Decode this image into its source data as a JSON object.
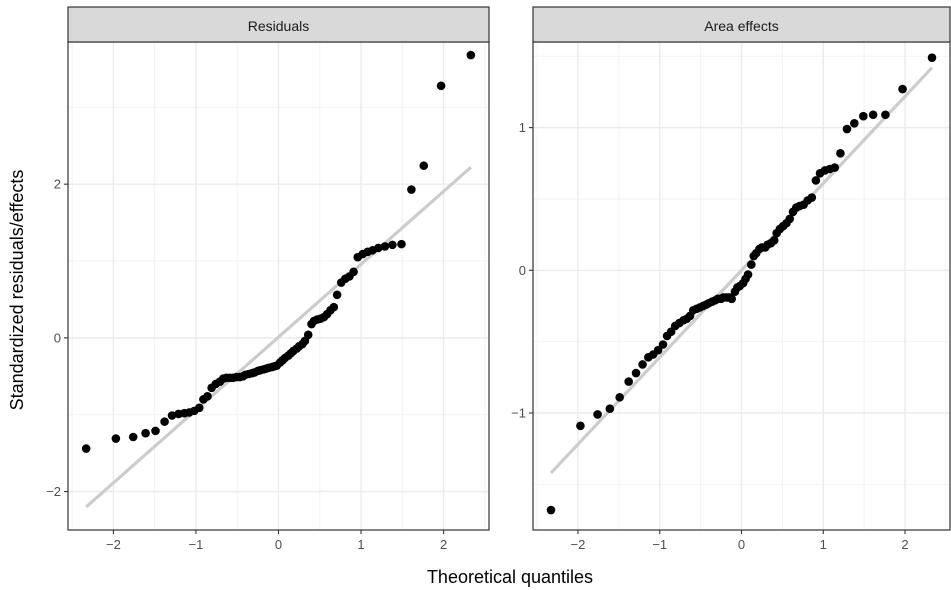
{
  "chart_data": {
    "type": "scatter",
    "xlabel": "Theoretical quantiles",
    "ylabel": "Standardized residuals/effects",
    "panels": [
      {
        "strip_label": "Residuals",
        "xlim": [
          -2.55,
          2.55
        ],
        "ylim": [
          -2.5,
          3.85
        ],
        "x_ticks": [
          -2,
          -1,
          0,
          1,
          2
        ],
        "x_tick_labels": [
          "−2",
          "−1",
          "0",
          "1",
          "2"
        ],
        "y_ticks": [
          -2,
          0,
          2
        ],
        "y_tick_labels": [
          "−2",
          "0",
          "2"
        ],
        "reference_line": {
          "x": [
            -2.33,
            2.33
          ],
          "y": [
            -2.2,
            2.22
          ]
        },
        "points": [
          [
            -2.33,
            -1.44
          ],
          [
            -1.97,
            -1.31
          ],
          [
            -1.76,
            -1.29
          ],
          [
            -1.61,
            -1.24
          ],
          [
            -1.49,
            -1.21
          ],
          [
            -1.38,
            -1.09
          ],
          [
            -1.29,
            -1.01
          ],
          [
            -1.21,
            -0.99
          ],
          [
            -1.14,
            -0.98
          ],
          [
            -1.08,
            -0.97
          ],
          [
            -1.02,
            -0.95
          ],
          [
            -0.96,
            -0.91
          ],
          [
            -0.91,
            -0.8
          ],
          [
            -0.86,
            -0.76
          ],
          [
            -0.81,
            -0.65
          ],
          [
            -0.76,
            -0.6
          ],
          [
            -0.71,
            -0.57
          ],
          [
            -0.67,
            -0.53
          ],
          [
            -0.63,
            -0.52
          ],
          [
            -0.59,
            -0.52
          ],
          [
            -0.55,
            -0.52
          ],
          [
            -0.51,
            -0.51
          ],
          [
            -0.47,
            -0.51
          ],
          [
            -0.43,
            -0.5
          ],
          [
            -0.4,
            -0.48
          ],
          [
            -0.36,
            -0.47
          ],
          [
            -0.32,
            -0.46
          ],
          [
            -0.29,
            -0.45
          ],
          [
            -0.25,
            -0.43
          ],
          [
            -0.22,
            -0.42
          ],
          [
            -0.18,
            -0.41
          ],
          [
            -0.15,
            -0.4
          ],
          [
            -0.12,
            -0.39
          ],
          [
            -0.08,
            -0.38
          ],
          [
            -0.05,
            -0.37
          ],
          [
            -0.02,
            -0.36
          ],
          [
            0.02,
            -0.32
          ],
          [
            0.05,
            -0.29
          ],
          [
            0.08,
            -0.26
          ],
          [
            0.12,
            -0.23
          ],
          [
            0.15,
            -0.2
          ],
          [
            0.18,
            -0.17
          ],
          [
            0.22,
            -0.14
          ],
          [
            0.25,
            -0.11
          ],
          [
            0.29,
            -0.08
          ],
          [
            0.32,
            -0.04
          ],
          [
            0.36,
            0.04
          ],
          [
            0.4,
            0.18
          ],
          [
            0.43,
            0.22
          ],
          [
            0.47,
            0.24
          ],
          [
            0.51,
            0.25
          ],
          [
            0.55,
            0.27
          ],
          [
            0.59,
            0.31
          ],
          [
            0.63,
            0.36
          ],
          [
            0.67,
            0.4
          ],
          [
            0.71,
            0.56
          ],
          [
            0.76,
            0.72
          ],
          [
            0.81,
            0.77
          ],
          [
            0.86,
            0.8
          ],
          [
            0.91,
            0.86
          ],
          [
            0.96,
            1.05
          ],
          [
            1.02,
            1.09
          ],
          [
            1.08,
            1.12
          ],
          [
            1.14,
            1.14
          ],
          [
            1.21,
            1.17
          ],
          [
            1.29,
            1.19
          ],
          [
            1.38,
            1.21
          ],
          [
            1.49,
            1.22
          ],
          [
            1.61,
            1.93
          ],
          [
            1.76,
            2.24
          ],
          [
            1.97,
            3.28
          ],
          [
            2.33,
            3.68
          ]
        ]
      },
      {
        "strip_label": "Area effects",
        "xlim": [
          -2.55,
          2.55
        ],
        "ylim": [
          -1.82,
          1.6
        ],
        "x_ticks": [
          -2,
          -1,
          0,
          1,
          2
        ],
        "x_tick_labels": [
          "−2",
          "−1",
          "0",
          "1",
          "2"
        ],
        "y_ticks": [
          -1,
          0,
          1
        ],
        "y_tick_labels": [
          "−1",
          "0",
          "1"
        ],
        "reference_line": {
          "x": [
            -2.33,
            2.33
          ],
          "y": [
            -1.42,
            1.42
          ]
        },
        "points": [
          [
            -2.33,
            -1.68
          ],
          [
            -1.97,
            -1.09
          ],
          [
            -1.76,
            -1.01
          ],
          [
            -1.61,
            -0.97
          ],
          [
            -1.49,
            -0.89
          ],
          [
            -1.38,
            -0.78
          ],
          [
            -1.29,
            -0.72
          ],
          [
            -1.21,
            -0.66
          ],
          [
            -1.14,
            -0.61
          ],
          [
            -1.08,
            -0.59
          ],
          [
            -1.02,
            -0.56
          ],
          [
            -0.96,
            -0.52
          ],
          [
            -0.91,
            -0.46
          ],
          [
            -0.86,
            -0.43
          ],
          [
            -0.81,
            -0.39
          ],
          [
            -0.76,
            -0.37
          ],
          [
            -0.71,
            -0.35
          ],
          [
            -0.67,
            -0.34
          ],
          [
            -0.63,
            -0.32
          ],
          [
            -0.59,
            -0.28
          ],
          [
            -0.55,
            -0.27
          ],
          [
            -0.51,
            -0.26
          ],
          [
            -0.47,
            -0.25
          ],
          [
            -0.43,
            -0.24
          ],
          [
            -0.4,
            -0.23
          ],
          [
            -0.36,
            -0.22
          ],
          [
            -0.32,
            -0.21
          ],
          [
            -0.29,
            -0.2
          ],
          [
            -0.25,
            -0.2
          ],
          [
            -0.22,
            -0.19
          ],
          [
            -0.18,
            -0.19
          ],
          [
            -0.15,
            -0.19
          ],
          [
            -0.12,
            -0.2
          ],
          [
            -0.08,
            -0.15
          ],
          [
            -0.05,
            -0.12
          ],
          [
            -0.02,
            -0.11
          ],
          [
            0.02,
            -0.09
          ],
          [
            0.05,
            -0.06
          ],
          [
            0.08,
            -0.03
          ],
          [
            0.12,
            0.04
          ],
          [
            0.15,
            0.1
          ],
          [
            0.18,
            0.12
          ],
          [
            0.22,
            0.15
          ],
          [
            0.25,
            0.16
          ],
          [
            0.29,
            0.16
          ],
          [
            0.32,
            0.18
          ],
          [
            0.36,
            0.19
          ],
          [
            0.4,
            0.21
          ],
          [
            0.43,
            0.26
          ],
          [
            0.47,
            0.29
          ],
          [
            0.51,
            0.31
          ],
          [
            0.55,
            0.33
          ],
          [
            0.59,
            0.36
          ],
          [
            0.63,
            0.41
          ],
          [
            0.67,
            0.44
          ],
          [
            0.71,
            0.45
          ],
          [
            0.76,
            0.46
          ],
          [
            0.81,
            0.49
          ],
          [
            0.86,
            0.51
          ],
          [
            0.91,
            0.63
          ],
          [
            0.96,
            0.68
          ],
          [
            1.02,
            0.7
          ],
          [
            1.08,
            0.71
          ],
          [
            1.14,
            0.72
          ],
          [
            1.21,
            0.82
          ],
          [
            1.29,
            0.99
          ],
          [
            1.38,
            1.03
          ],
          [
            1.49,
            1.08
          ],
          [
            1.61,
            1.09
          ],
          [
            1.76,
            1.09
          ],
          [
            1.97,
            1.27
          ],
          [
            2.33,
            1.49
          ]
        ]
      }
    ]
  }
}
